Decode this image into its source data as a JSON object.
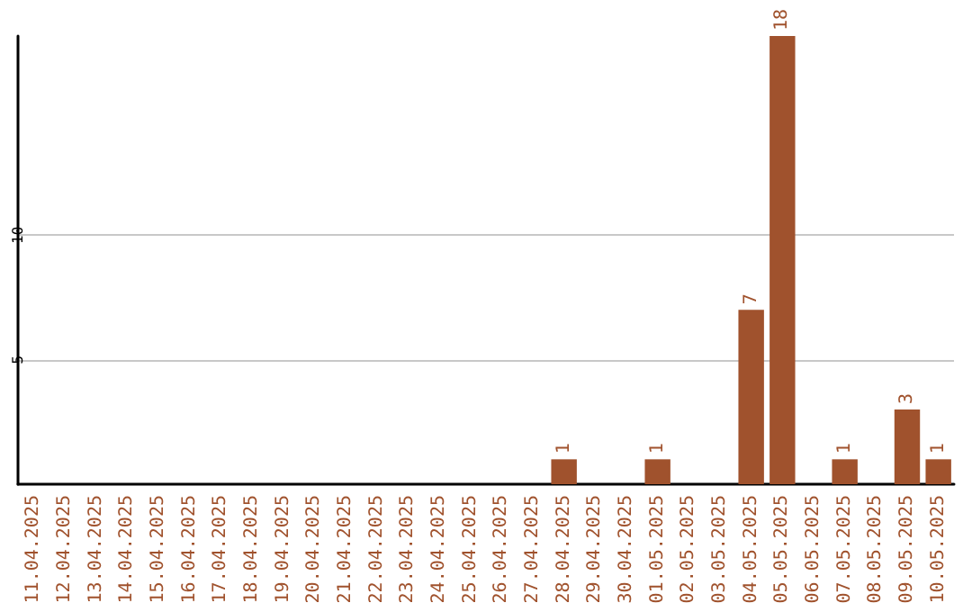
{
  "chart_data": {
    "type": "bar",
    "categories": [
      "11.04.2025",
      "12.04.2025",
      "13.04.2025",
      "14.04.2025",
      "15.04.2025",
      "16.04.2025",
      "17.04.2025",
      "18.04.2025",
      "19.04.2025",
      "20.04.2025",
      "21.04.2025",
      "22.04.2025",
      "23.04.2025",
      "24.04.2025",
      "25.04.2025",
      "26.04.2025",
      "27.04.2025",
      "28.04.2025",
      "29.04.2025",
      "30.04.2025",
      "01.05.2025",
      "02.05.2025",
      "03.05.2025",
      "04.05.2025",
      "05.05.2025",
      "06.05.2025",
      "07.05.2025",
      "08.05.2025",
      "09.05.2025",
      "10.05.2025"
    ],
    "values": [
      0,
      0,
      0,
      0,
      0,
      0,
      0,
      0,
      0,
      0,
      0,
      0,
      0,
      0,
      0,
      0,
      0,
      1,
      0,
      0,
      1,
      0,
      0,
      7,
      18,
      0,
      1,
      0,
      3,
      1
    ],
    "value_labels": [
      null,
      null,
      null,
      null,
      null,
      null,
      null,
      null,
      null,
      null,
      null,
      null,
      null,
      null,
      null,
      null,
      null,
      "1",
      null,
      null,
      "1",
      null,
      null,
      "7",
      "18",
      null,
      "1",
      null,
      "3",
      "1"
    ],
    "color": "#a0522d",
    "ylim": [
      0,
      18
    ],
    "yticks": [
      5,
      10
    ],
    "grid": "y"
  }
}
